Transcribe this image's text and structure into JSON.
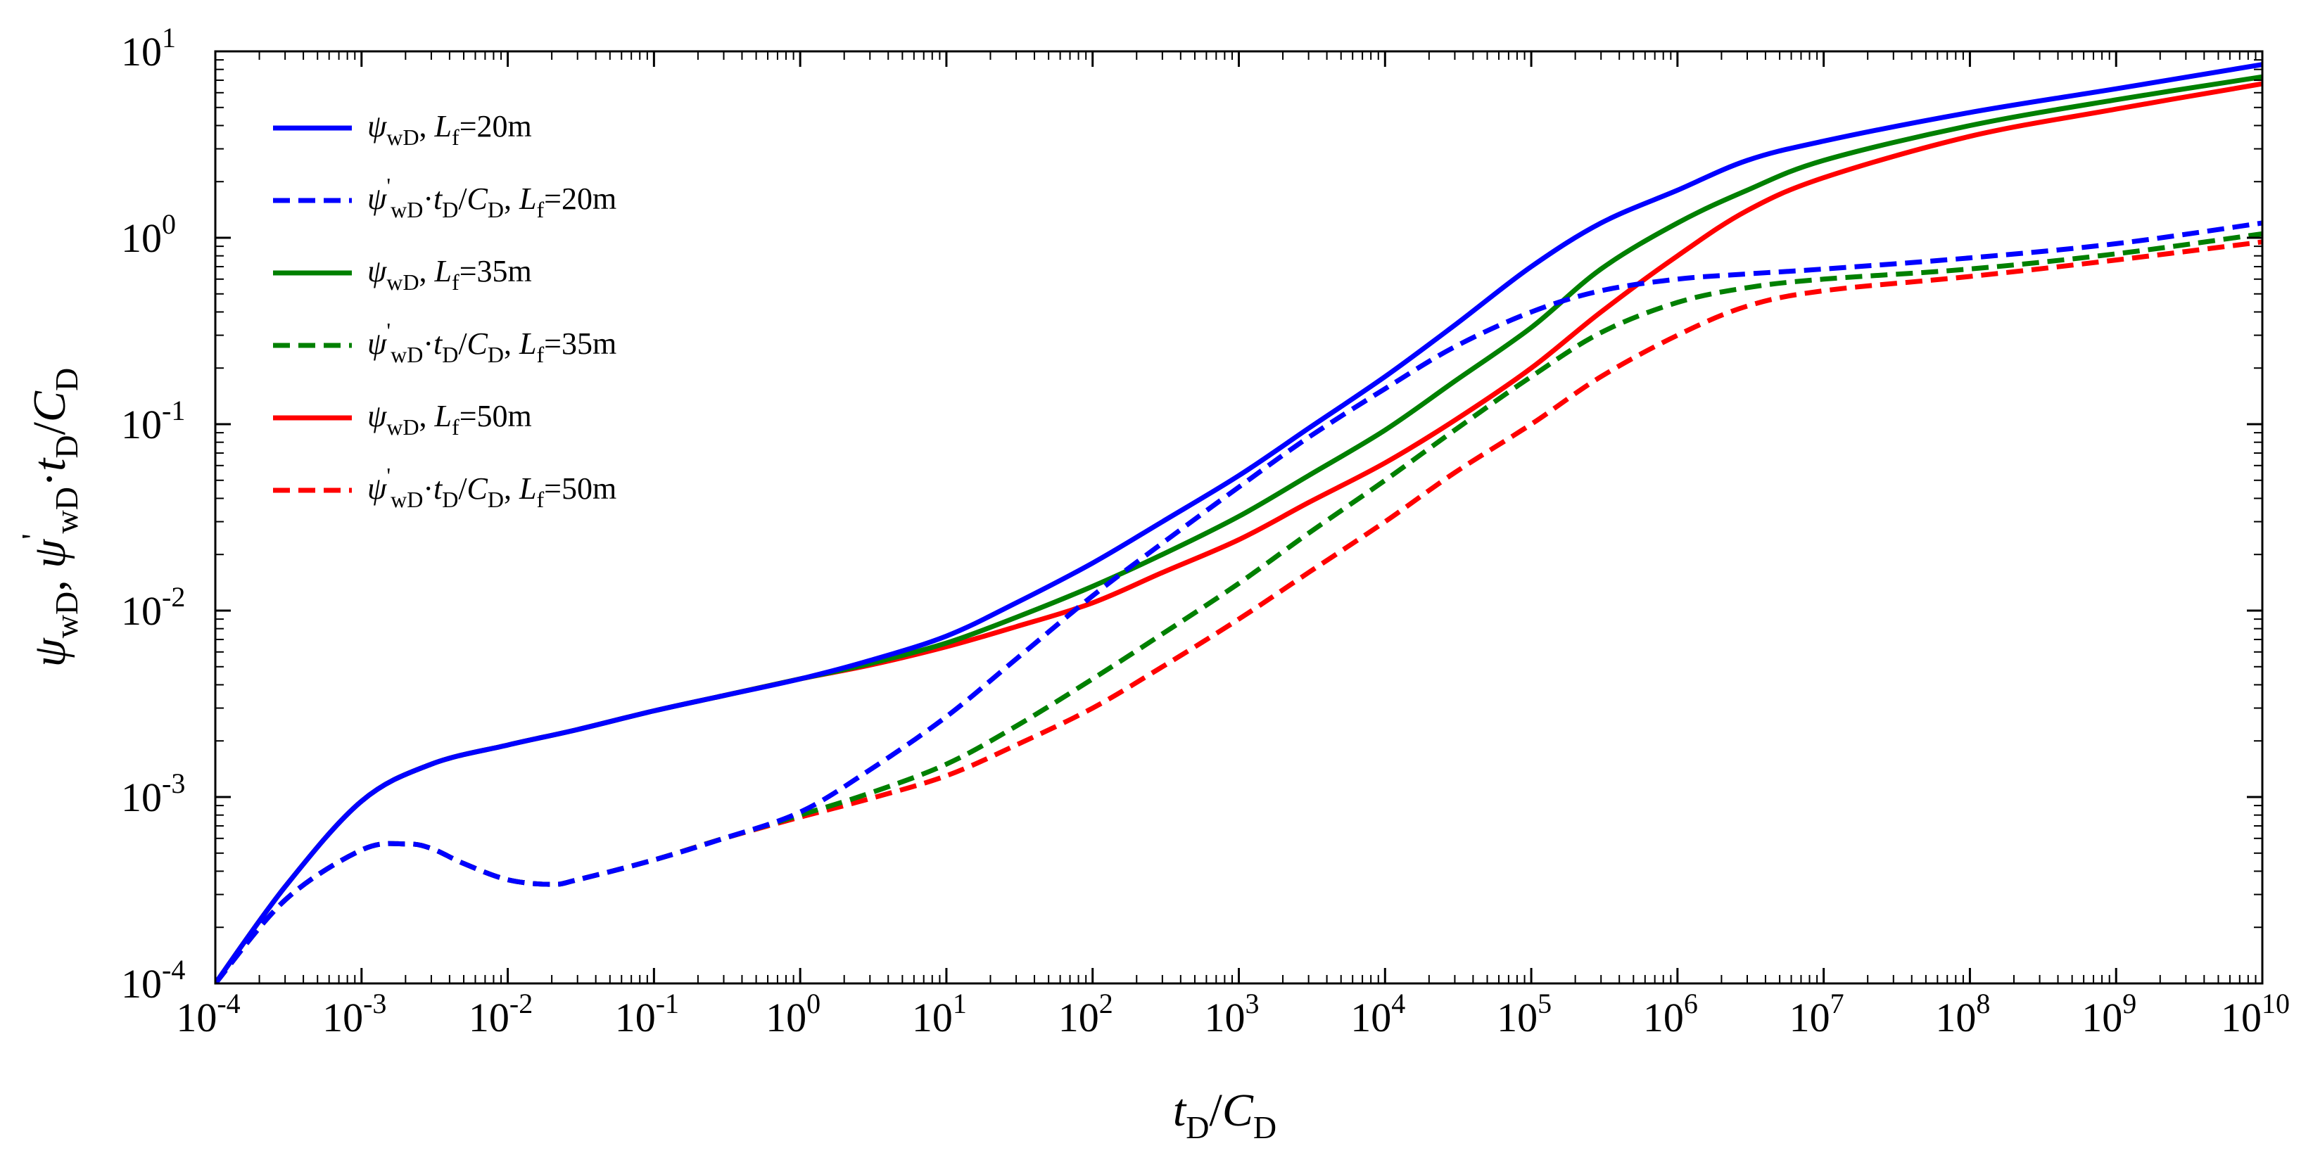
{
  "chart_data": {
    "type": "line",
    "xscale": "log",
    "yscale": "log",
    "xlim": [
      0.0001,
      10000000000
    ],
    "ylim": [
      0.0001,
      10
    ],
    "xlabel": "tD/CD",
    "ylabel": "ψwD, ψ'wD·tD/CD",
    "grid": false,
    "legend_position": "top-left",
    "x_ticks": [
      {
        "base": "10",
        "exp": "-4"
      },
      {
        "base": "10",
        "exp": "-3"
      },
      {
        "base": "10",
        "exp": "-2"
      },
      {
        "base": "10",
        "exp": "-1"
      },
      {
        "base": "10",
        "exp": "0"
      },
      {
        "base": "10",
        "exp": "1"
      },
      {
        "base": "10",
        "exp": "2"
      },
      {
        "base": "10",
        "exp": "3"
      },
      {
        "base": "10",
        "exp": "4"
      },
      {
        "base": "10",
        "exp": "5"
      },
      {
        "base": "10",
        "exp": "6"
      },
      {
        "base": "10",
        "exp": "7"
      },
      {
        "base": "10",
        "exp": "8"
      },
      {
        "base": "10",
        "exp": "9"
      },
      {
        "base": "10",
        "exp": "10"
      }
    ],
    "y_ticks": [
      {
        "base": "10",
        "exp": "-4"
      },
      {
        "base": "10",
        "exp": "-3"
      },
      {
        "base": "10",
        "exp": "-2"
      },
      {
        "base": "10",
        "exp": "-1"
      },
      {
        "base": "10",
        "exp": "0"
      },
      {
        "base": "10",
        "exp": "1"
      }
    ],
    "series": [
      {
        "name": "ψwD, Lf=20m",
        "color": "#0000ff",
        "dash": "solid",
        "x": [
          0.0001,
          0.0003,
          0.001,
          0.003,
          0.01,
          0.03,
          0.1,
          0.3,
          1,
          3,
          10,
          30,
          100,
          300,
          1000,
          3000,
          10000,
          30000,
          100000,
          300000,
          1000000,
          3000000,
          10000000,
          100000000,
          1000000000,
          10000000000
        ],
        "y": [
          0.0001,
          0.00033,
          0.00095,
          0.0015,
          0.0019,
          0.0023,
          0.0029,
          0.0035,
          0.0043,
          0.0054,
          0.0073,
          0.011,
          0.018,
          0.03,
          0.053,
          0.095,
          0.18,
          0.34,
          0.7,
          1.2,
          1.8,
          2.6,
          3.3,
          4.7,
          6.3,
          8.5
        ]
      },
      {
        "name": "ψ'wD·tD/CD, Lf=20m",
        "color": "#0000ff",
        "dash": "dashed",
        "x": [
          0.0001,
          0.0003,
          0.001,
          0.002,
          0.003,
          0.005,
          0.01,
          0.02,
          0.03,
          0.1,
          0.3,
          1,
          3,
          10,
          30,
          100,
          300,
          1000,
          3000,
          10000,
          30000,
          100000,
          300000,
          1000000,
          3000000,
          10000000,
          100000000,
          1000000000,
          10000000000
        ],
        "y": [
          0.0001,
          0.00028,
          0.00052,
          0.00056,
          0.00053,
          0.00044,
          0.00036,
          0.00034,
          0.00036,
          0.00046,
          0.0006,
          0.00083,
          0.0014,
          0.0027,
          0.0055,
          0.012,
          0.023,
          0.046,
          0.085,
          0.155,
          0.26,
          0.4,
          0.52,
          0.6,
          0.64,
          0.68,
          0.78,
          0.93,
          1.2
        ]
      },
      {
        "name": "ψwD, Lf=35m",
        "color": "#008000",
        "dash": "solid",
        "x": [
          0.0001,
          0.0003,
          0.001,
          0.003,
          0.01,
          0.03,
          0.1,
          0.3,
          1,
          3,
          10,
          30,
          100,
          300,
          1000,
          3000,
          10000,
          30000,
          100000,
          300000,
          1000000,
          3000000,
          10000000,
          100000000,
          1000000000,
          10000000000
        ],
        "y": [
          0.0001,
          0.00033,
          0.00095,
          0.0015,
          0.0019,
          0.0023,
          0.0029,
          0.0035,
          0.0043,
          0.0052,
          0.0067,
          0.0092,
          0.0135,
          0.02,
          0.032,
          0.053,
          0.093,
          0.17,
          0.33,
          0.68,
          1.2,
          1.8,
          2.6,
          4.0,
          5.5,
          7.3
        ]
      },
      {
        "name": "ψ'wD·tD/CD, Lf=35m",
        "color": "#008000",
        "dash": "dashed",
        "x": [
          0.0001,
          0.0003,
          0.001,
          0.002,
          0.003,
          0.005,
          0.01,
          0.02,
          0.03,
          0.1,
          0.3,
          1,
          3,
          10,
          30,
          100,
          300,
          1000,
          3000,
          10000,
          30000,
          100000,
          300000,
          1000000,
          3000000,
          10000000,
          100000000,
          1000000000,
          10000000000
        ],
        "y": [
          0.0001,
          0.00028,
          0.00052,
          0.00056,
          0.00053,
          0.00044,
          0.00036,
          0.00034,
          0.00036,
          0.00046,
          0.0006,
          0.0008,
          0.00105,
          0.0015,
          0.0024,
          0.0043,
          0.0075,
          0.014,
          0.026,
          0.05,
          0.093,
          0.18,
          0.31,
          0.45,
          0.54,
          0.6,
          0.68,
          0.82,
          1.05
        ]
      },
      {
        "name": "ψwD, Lf=50m",
        "color": "#ff0000",
        "dash": "solid",
        "x": [
          0.0001,
          0.0003,
          0.001,
          0.003,
          0.01,
          0.03,
          0.1,
          0.3,
          1,
          3,
          10,
          30,
          100,
          300,
          1000,
          3000,
          10000,
          30000,
          100000,
          300000,
          1000000,
          3000000,
          10000000,
          100000000,
          1000000000,
          10000000000
        ],
        "y": [
          0.0001,
          0.00033,
          0.00095,
          0.0015,
          0.0019,
          0.0023,
          0.0029,
          0.0035,
          0.0043,
          0.0051,
          0.0064,
          0.0082,
          0.011,
          0.016,
          0.024,
          0.038,
          0.062,
          0.105,
          0.2,
          0.4,
          0.8,
          1.4,
          2.1,
          3.5,
          4.9,
          6.7
        ]
      },
      {
        "name": "ψ'wD·tD/CD, Lf=50m",
        "color": "#ff0000",
        "dash": "dashed",
        "x": [
          0.0001,
          0.0003,
          0.001,
          0.002,
          0.003,
          0.005,
          0.01,
          0.02,
          0.03,
          0.1,
          0.3,
          1,
          3,
          10,
          30,
          100,
          300,
          1000,
          3000,
          10000,
          30000,
          100000,
          300000,
          1000000,
          3000000,
          10000000,
          100000000,
          1000000000,
          10000000000
        ],
        "y": [
          0.0001,
          0.00028,
          0.00052,
          0.00056,
          0.00053,
          0.00044,
          0.00036,
          0.00034,
          0.00036,
          0.00046,
          0.0006,
          0.00078,
          0.00098,
          0.0013,
          0.0019,
          0.003,
          0.005,
          0.009,
          0.016,
          0.03,
          0.055,
          0.1,
          0.18,
          0.3,
          0.43,
          0.52,
          0.62,
          0.76,
          0.95
        ]
      }
    ]
  },
  "legend": [
    {
      "psi": "ψ",
      "prime": "",
      "sub": "wD",
      "rest": true,
      "tail": "",
      "L": "L",
      "Lsub": "f",
      "val": "=20m",
      "color": "#0000ff",
      "dash": "solid"
    },
    {
      "psi": "ψ",
      "prime": "'",
      "sub": "wD",
      "rest": true,
      "tail": "tD/CD",
      "L": "L",
      "Lsub": "f",
      "val": "=20m",
      "color": "#0000ff",
      "dash": "dashed"
    },
    {
      "psi": "ψ",
      "prime": "",
      "sub": "wD",
      "rest": true,
      "tail": "",
      "L": "L",
      "Lsub": "f",
      "val": "=35m",
      "color": "#008000",
      "dash": "solid"
    },
    {
      "psi": "ψ",
      "prime": "'",
      "sub": "wD",
      "rest": true,
      "tail": "tD/CD",
      "L": "L",
      "Lsub": "f",
      "val": "=35m",
      "color": "#008000",
      "dash": "dashed"
    },
    {
      "psi": "ψ",
      "prime": "",
      "sub": "wD",
      "rest": true,
      "tail": "",
      "L": "L",
      "Lsub": "f",
      "val": "=50m",
      "color": "#ff0000",
      "dash": "solid"
    },
    {
      "psi": "ψ",
      "prime": "'",
      "sub": "wD",
      "rest": true,
      "tail": "tD/CD",
      "L": "L",
      "Lsub": "f",
      "val": "=50m",
      "color": "#ff0000",
      "dash": "dashed"
    }
  ]
}
